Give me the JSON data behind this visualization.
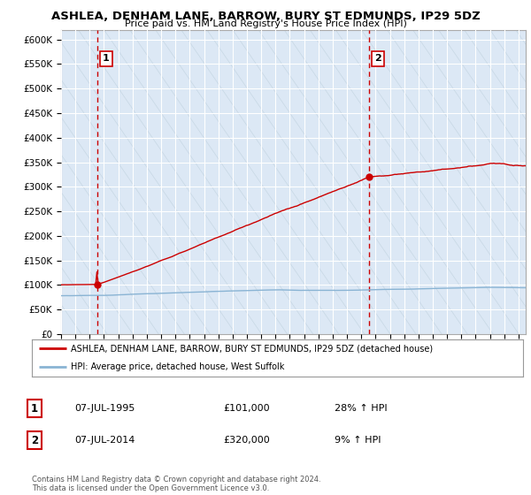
{
  "title": "ASHLEA, DENHAM LANE, BARROW, BURY ST EDMUNDS, IP29 5DZ",
  "subtitle": "Price paid vs. HM Land Registry's House Price Index (HPI)",
  "ylabel_ticks": [
    "£0",
    "£50K",
    "£100K",
    "£150K",
    "£200K",
    "£250K",
    "£300K",
    "£350K",
    "£400K",
    "£450K",
    "£500K",
    "£550K",
    "£600K"
  ],
  "ylim": [
    0,
    620000
  ],
  "yticks": [
    0,
    50000,
    100000,
    150000,
    200000,
    250000,
    300000,
    350000,
    400000,
    450000,
    500000,
    550000,
    600000
  ],
  "xmin": 1993.0,
  "xmax": 2025.5,
  "sale1_x": 1995.52,
  "sale1_y": 101000,
  "sale1_label": "1",
  "sale2_x": 2014.52,
  "sale2_y": 320000,
  "sale2_label": "2",
  "vline1_x": 1995.52,
  "vline2_x": 2014.52,
  "hpi_color": "#8ab4d4",
  "price_color": "#cc0000",
  "vline_color": "#cc0000",
  "background_color": "#ffffff",
  "plot_bg_color": "#dce8f5",
  "legend_line1": "ASHLEA, DENHAM LANE, BARROW, BURY ST EDMUNDS, IP29 5DZ (detached house)",
  "legend_line2": "HPI: Average price, detached house, West Suffolk",
  "annotation1_date": "07-JUL-1995",
  "annotation1_price": "£101,000",
  "annotation1_hpi": "28% ↑ HPI",
  "annotation2_date": "07-JUL-2014",
  "annotation2_price": "£320,000",
  "annotation2_hpi": "9% ↑ HPI",
  "footer": "Contains HM Land Registry data © Crown copyright and database right 2024.\nThis data is licensed under the Open Government Licence v3.0."
}
